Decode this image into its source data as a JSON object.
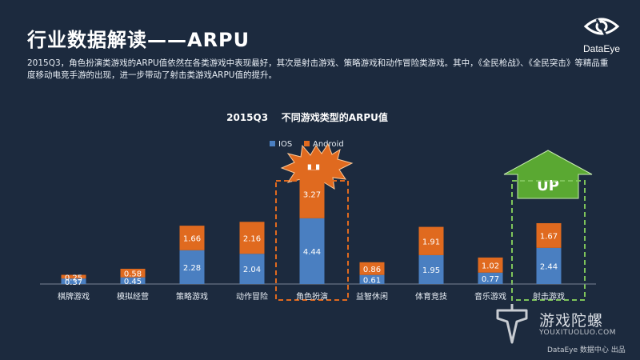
{
  "page_title": "行业数据解读——ARPU",
  "brand": {
    "name": "DataEye"
  },
  "description": "2015Q3，角色扮演类游戏的ARPU值依然在各类游戏中表现最好，其次是射击游戏、策略游戏和动作冒险类游戏。其中，《全民枪战》、《全民突击》等精品重度移动电竞手游的出现，进一步带动了射击类游戏ARPU值的提升。",
  "callouts": {
    "high_label": "H",
    "up_label": "UP"
  },
  "colors": {
    "ios": "#4a7fc1",
    "android": "#e06a1f",
    "high_border": "#e06a1f",
    "up_border": "#7ec45a",
    "up_arrow": "#5aa832"
  },
  "watermark": {
    "cn": "游戏陀螺",
    "en": "YOUXITUOLUO.COM"
  },
  "credit": "DataEye 数据中心 出品",
  "chart_data": {
    "type": "bar",
    "stacked": true,
    "title": "2015Q3    不同游戏类型的ARPU值",
    "categories": [
      "棋牌游戏",
      "模拟经营",
      "策略游戏",
      "动作冒险",
      "角色扮演",
      "益智休闲",
      "体育竞技",
      "音乐游戏",
      "射击游戏"
    ],
    "series": [
      {
        "name": "IOS",
        "values": [
          0.37,
          0.45,
          2.28,
          2.04,
          4.44,
          0.61,
          1.95,
          0.77,
          2.44
        ]
      },
      {
        "name": "Android",
        "values": [
          0.25,
          0.58,
          1.66,
          2.16,
          3.27,
          0.86,
          1.91,
          1.02,
          1.67
        ]
      }
    ],
    "ylim": [
      0,
      8
    ],
    "legend_position": "top-center",
    "highlights": {
      "high": "角色扮演",
      "up": "射击游戏"
    }
  }
}
